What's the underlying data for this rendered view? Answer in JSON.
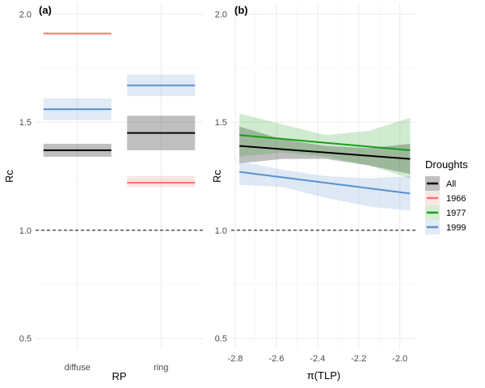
{
  "colors": {
    "All": "#000000",
    "1966": "#f8766d",
    "1977": "#1a9c1a",
    "1999": "#5b8fcf",
    "grid": "#ebebeb"
  },
  "legend": {
    "title": "Droughts",
    "entries": [
      "All",
      "1966",
      "1977",
      "1999"
    ]
  },
  "chart_data": [
    {
      "type": "bar",
      "panel_label": "(a)",
      "xlabel": "RP",
      "ylabel": "Rc",
      "ylim": [
        0.45,
        2.05
      ],
      "yticks": [
        0.5,
        1.0,
        1.5,
        2.0
      ],
      "ytick_labels": [
        "0.5",
        "1.0",
        "1.5",
        "2.0"
      ],
      "categories": [
        "diffuse",
        "ring"
      ],
      "reference_line": 1.0,
      "series": [
        {
          "name": "All",
          "values": [
            1.37,
            1.45
          ],
          "lower": [
            1.34,
            1.37
          ],
          "upper": [
            1.4,
            1.53
          ]
        },
        {
          "name": "1966",
          "values": [
            1.91,
            1.22
          ],
          "lower": [
            1.91,
            1.2
          ],
          "upper": [
            1.91,
            1.25
          ]
        },
        {
          "name": "1999",
          "values": [
            1.56,
            1.67
          ],
          "lower": [
            1.51,
            1.62
          ],
          "upper": [
            1.61,
            1.72
          ]
        }
      ]
    },
    {
      "type": "line",
      "panel_label": "(b)",
      "xlabel": "π(TLP)",
      "ylabel": "Rc",
      "xlim": [
        -2.82,
        -1.92
      ],
      "ylim": [
        0.45,
        2.05
      ],
      "xticks": [
        -2.8,
        -2.6,
        -2.4,
        -2.2,
        -2.0
      ],
      "xtick_labels": [
        "-2.8",
        "-2.6",
        "-2.4",
        "-2.2",
        "-2.0"
      ],
      "yticks": [
        0.5,
        1.0,
        1.5,
        2.0
      ],
      "ytick_labels": [
        "0.5",
        "1.0",
        "1.5",
        "2.0"
      ],
      "reference_line": 1.0,
      "series": [
        {
          "name": "All",
          "x": [
            -2.78,
            -1.95
          ],
          "y": [
            1.39,
            1.33
          ],
          "band_x": [
            -2.78,
            -2.57,
            -2.36,
            -2.15,
            -1.95
          ],
          "band_lower": [
            1.31,
            1.33,
            1.33,
            1.3,
            1.26
          ],
          "band_upper": [
            1.48,
            1.42,
            1.39,
            1.38,
            1.4
          ]
        },
        {
          "name": "1977",
          "x": [
            -2.78,
            -1.95
          ],
          "y": [
            1.44,
            1.37
          ],
          "band_x": [
            -2.78,
            -2.57,
            -2.36,
            -2.15,
            -1.95
          ],
          "band_lower": [
            1.34,
            1.36,
            1.34,
            1.3,
            1.24
          ],
          "band_upper": [
            1.54,
            1.49,
            1.44,
            1.46,
            1.52
          ]
        },
        {
          "name": "1999",
          "x": [
            -2.78,
            -1.95
          ],
          "y": [
            1.27,
            1.17
          ],
          "band_x": [
            -2.78,
            -2.57,
            -2.36,
            -2.15,
            -1.95
          ],
          "band_lower": [
            1.21,
            1.2,
            1.15,
            1.11,
            1.09
          ],
          "band_upper": [
            1.32,
            1.28,
            1.25,
            1.24,
            1.25
          ]
        }
      ]
    }
  ]
}
